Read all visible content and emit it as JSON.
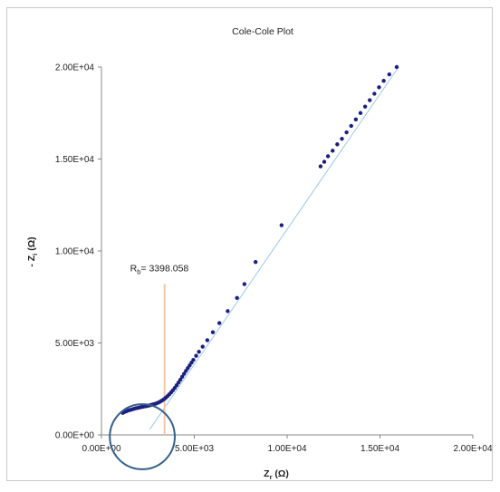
{
  "chart_data": {
    "type": "scatter",
    "title": "Cole-Cole Plot",
    "xlabel": "Z",
    "xlabel_sub": "r",
    "xlabel_unit": " (Ω)",
    "ylabel": "- Z",
    "ylabel_sub": "i",
    "ylabel_unit": " (Ω)",
    "xlim": [
      0,
      20000
    ],
    "ylim": [
      0,
      20000
    ],
    "xticks": [
      {
        "value": 0,
        "label": "0.00E+00"
      },
      {
        "value": 5000,
        "label": "5.00E+03"
      },
      {
        "value": 10000,
        "label": "1.00E+04"
      },
      {
        "value": 15000,
        "label": "1.50E+04"
      },
      {
        "value": 20000,
        "label": "2.00E+04"
      }
    ],
    "yticks": [
      {
        "value": 0,
        "label": "0.00E+00"
      },
      {
        "value": 5000,
        "label": "5.00E+03"
      },
      {
        "value": 10000,
        "label": "1.00E+04"
      },
      {
        "value": 15000,
        "label": "1.50E+04"
      },
      {
        "value": 20000,
        "label": "2.00E+04"
      }
    ],
    "grid": false,
    "legend": "none",
    "colors": {
      "points": "#1c2080",
      "fit_line": "#9cc8ea",
      "marker_line": "#f5c6a5",
      "circle": "#35618d",
      "axis": "#888888",
      "text": "#222222"
    },
    "annotation": {
      "label_main": "R",
      "label_sub": "b",
      "label_value": "= 3398.058",
      "x": 3398.058,
      "y_top": 8200
    },
    "highlight_circle": {
      "cx": 2200,
      "cy": -100,
      "r": 1750
    },
    "fit_line": [
      [
        2600,
        300
      ],
      [
        16000,
        20000
      ]
    ],
    "series": [
      {
        "values": [
          [
            1150,
            1200
          ],
          [
            1250,
            1250
          ],
          [
            1350,
            1290
          ],
          [
            1450,
            1330
          ],
          [
            1550,
            1360
          ],
          [
            1650,
            1390
          ],
          [
            1750,
            1420
          ],
          [
            1850,
            1450
          ],
          [
            1950,
            1470
          ],
          [
            2050,
            1495
          ],
          [
            2150,
            1515
          ],
          [
            2250,
            1535
          ],
          [
            2350,
            1555
          ],
          [
            2450,
            1575
          ],
          [
            2550,
            1600
          ],
          [
            2650,
            1625
          ],
          [
            2750,
            1650
          ],
          [
            2850,
            1680
          ],
          [
            2950,
            1710
          ],
          [
            3050,
            1750
          ],
          [
            3150,
            1800
          ],
          [
            3250,
            1860
          ],
          [
            3350,
            1930
          ],
          [
            3450,
            2010
          ],
          [
            3550,
            2100
          ],
          [
            3650,
            2200
          ],
          [
            3750,
            2310
          ],
          [
            3850,
            2430
          ],
          [
            3950,
            2560
          ],
          [
            4050,
            2700
          ],
          [
            4150,
            2850
          ],
          [
            4250,
            3000
          ],
          [
            4350,
            3160
          ],
          [
            4450,
            3320
          ],
          [
            4550,
            3480
          ],
          [
            4650,
            3630
          ],
          [
            4750,
            3780
          ],
          [
            4850,
            3930
          ],
          [
            4950,
            4080
          ],
          [
            5100,
            4300
          ],
          [
            5250,
            4520
          ],
          [
            5450,
            4800
          ],
          [
            5700,
            5150
          ],
          [
            6000,
            5580
          ],
          [
            6350,
            6080
          ],
          [
            6800,
            6730
          ],
          [
            7300,
            7450
          ],
          [
            7700,
            8200
          ],
          [
            8300,
            9400
          ],
          [
            9700,
            11400
          ],
          [
            11800,
            14600
          ],
          [
            12000,
            14850
          ],
          [
            12200,
            15150
          ],
          [
            12450,
            15450
          ],
          [
            12700,
            15800
          ],
          [
            12950,
            16100
          ],
          [
            13200,
            16450
          ],
          [
            13450,
            16800
          ],
          [
            13700,
            17150
          ],
          [
            13950,
            17500
          ],
          [
            14200,
            17850
          ],
          [
            14450,
            18200
          ],
          [
            14700,
            18550
          ],
          [
            14950,
            18900
          ],
          [
            15200,
            19250
          ],
          [
            15500,
            19600
          ],
          [
            15900,
            20000
          ]
        ]
      }
    ]
  }
}
